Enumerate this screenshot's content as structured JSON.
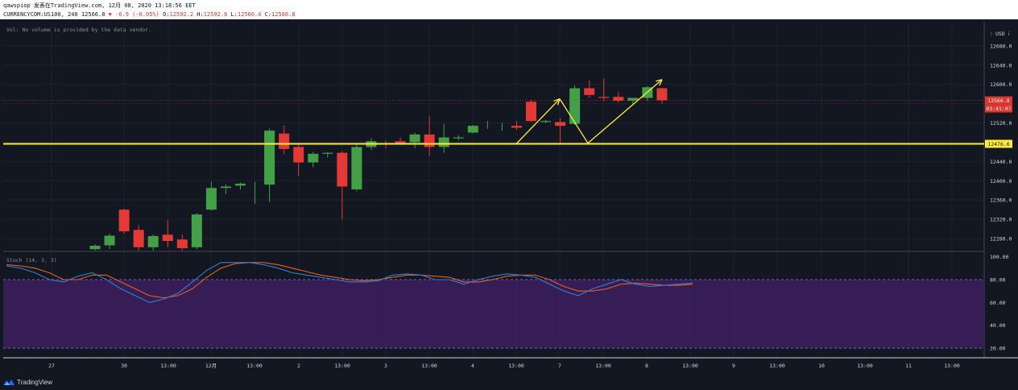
{
  "header": {
    "line1": "qawspiop 发表在TradingView.com, 12月 08, 2020 13:18:56 EET",
    "symbol": "CURRENCYCOM:US100, 240",
    "last": "12566.8",
    "change": "▼ -6.9 (-0.05%)",
    "o_label": "O:",
    "o": "12592.2",
    "h_label": "H:",
    "h": "12592.8",
    "l_label": "L:",
    "l": "12560.4",
    "c_label": "C:",
    "c": "12566.8"
  },
  "volume_note": "Vol: No volume is provided by the data vendor.",
  "currency_label": "⁝ USD ⁞",
  "price_tag": {
    "value": "12566.8",
    "countdown": "03:41:07",
    "color": "#e0342f"
  },
  "level_tag": {
    "value": "12476.6",
    "color": "#ffeb3b"
  },
  "stoch_label": "Stoch (14, 3, 3)",
  "brand": "TradingView",
  "colors": {
    "up": "#43a047",
    "down": "#e53935",
    "level": "#ffeb3b",
    "stoch_k": "#2f7fd8",
    "stoch_d": "#e8601c",
    "stoch_band": "#3b1e5c"
  },
  "chart_data": {
    "type": "candlestick",
    "price_axis": {
      "ticks": [
        12280.0,
        12320.0,
        12360.0,
        12400.0,
        12440.0,
        12480.0,
        12520.0,
        12560.0,
        12600.0,
        12640.0,
        12680.0
      ],
      "ylim": [
        12255,
        12730
      ]
    },
    "time_axis": {
      "ticks": [
        "27",
        "30",
        "13:00",
        "12月",
        "13:00",
        "2",
        "13:00",
        "3",
        "13:00",
        "4",
        "13:00",
        "7",
        "13:00",
        "8",
        "13:00",
        "9",
        "13:00",
        "10",
        "13:00",
        "11",
        "13:00"
      ]
    },
    "horizontal_level": 12476.6,
    "candles": [
      {
        "o": 12258,
        "h": 12268,
        "l": 12250,
        "c": 12265
      },
      {
        "o": 12266,
        "h": 12290,
        "l": 12258,
        "c": 12286
      },
      {
        "o": 12340,
        "h": 12342,
        "l": 12290,
        "c": 12295
      },
      {
        "o": 12298,
        "h": 12308,
        "l": 12250,
        "c": 12262
      },
      {
        "o": 12262,
        "h": 12288,
        "l": 12255,
        "c": 12285
      },
      {
        "o": 12288,
        "h": 12318,
        "l": 12262,
        "c": 12275
      },
      {
        "o": 12278,
        "h": 12288,
        "l": 12255,
        "c": 12260
      },
      {
        "o": 12262,
        "h": 12333,
        "l": 12258,
        "c": 12330
      },
      {
        "o": 12340,
        "h": 12398,
        "l": 12338,
        "c": 12385
      },
      {
        "o": 12385,
        "h": 12392,
        "l": 12372,
        "c": 12388
      },
      {
        "o": 12390,
        "h": 12396,
        "l": 12382,
        "c": 12394
      },
      {
        "o": 12392,
        "h": 12398,
        "l": 12352,
        "c": 12392
      },
      {
        "o": 12392,
        "h": 12508,
        "l": 12356,
        "c": 12504
      },
      {
        "o": 12498,
        "h": 12515,
        "l": 12455,
        "c": 12466
      },
      {
        "o": 12470,
        "h": 12476,
        "l": 12410,
        "c": 12438
      },
      {
        "o": 12438,
        "h": 12460,
        "l": 12428,
        "c": 12456
      },
      {
        "o": 12456,
        "h": 12460,
        "l": 12448,
        "c": 12458
      },
      {
        "o": 12458,
        "h": 12462,
        "l": 12320,
        "c": 12388
      },
      {
        "o": 12382,
        "h": 12478,
        "l": 12378,
        "c": 12470
      },
      {
        "o": 12470,
        "h": 12488,
        "l": 12464,
        "c": 12482
      },
      {
        "o": 12478,
        "h": 12484,
        "l": 12468,
        "c": 12476
      },
      {
        "o": 12482,
        "h": 12490,
        "l": 12474,
        "c": 12478
      },
      {
        "o": 12480,
        "h": 12500,
        "l": 12468,
        "c": 12496
      },
      {
        "o": 12496,
        "h": 12534,
        "l": 12452,
        "c": 12470
      },
      {
        "o": 12470,
        "h": 12518,
        "l": 12458,
        "c": 12490
      },
      {
        "o": 12488,
        "h": 12494,
        "l": 12484,
        "c": 12490
      },
      {
        "o": 12500,
        "h": 12516,
        "l": 12498,
        "c": 12514
      },
      {
        "o": 12512,
        "h": 12524,
        "l": 12508,
        "c": 12512
      },
      {
        "o": 12512,
        "h": 12520,
        "l": 12504,
        "c": 12512
      },
      {
        "o": 12514,
        "h": 12524,
        "l": 12506,
        "c": 12510
      },
      {
        "o": 12564,
        "h": 12568,
        "l": 12522,
        "c": 12524
      },
      {
        "o": 12522,
        "h": 12526,
        "l": 12520,
        "c": 12524
      },
      {
        "o": 12522,
        "h": 12530,
        "l": 12478,
        "c": 12514
      },
      {
        "o": 12518,
        "h": 12598,
        "l": 12516,
        "c": 12592
      },
      {
        "o": 12592,
        "h": 12608,
        "l": 12572,
        "c": 12578
      },
      {
        "o": 12574,
        "h": 12612,
        "l": 12566,
        "c": 12572
      },
      {
        "o": 12574,
        "h": 12584,
        "l": 12562,
        "c": 12566
      },
      {
        "o": 12566,
        "h": 12570,
        "l": 12558,
        "c": 12572
      },
      {
        "o": 12572,
        "h": 12596,
        "l": 12566,
        "c": 12594
      },
      {
        "o": 12592,
        "h": 12593,
        "l": 12560,
        "c": 12567
      }
    ],
    "drawings": {
      "arrow_up_1": [
        [
          12476.6,
          0
        ],
        [
          12570,
          1
        ]
      ],
      "zigzag_down": [
        [
          12570,
          1
        ],
        [
          12478,
          2
        ]
      ],
      "arrow_up_2": [
        [
          12478,
          2
        ],
        [
          12610,
          3
        ]
      ]
    },
    "stochastic": {
      "ylim": [
        20,
        100
      ],
      "ticks": [
        100.0,
        80.0,
        60.0,
        40.0,
        20.0
      ],
      "bands": [
        80,
        20
      ],
      "k": [
        92,
        90,
        86,
        80,
        78,
        83,
        86,
        80,
        72,
        66,
        60,
        63,
        68,
        78,
        88,
        95,
        95,
        95,
        93,
        90,
        86,
        84,
        82,
        80,
        78,
        78,
        79,
        84,
        85,
        84,
        80,
        80,
        76,
        80,
        83,
        85,
        84,
        82,
        76,
        70,
        66,
        72,
        76,
        80,
        76,
        74,
        75,
        76,
        77
      ],
      "d": [
        93,
        92,
        90,
        86,
        80,
        80,
        84,
        84,
        78,
        72,
        66,
        64,
        66,
        72,
        82,
        90,
        94,
        95,
        95,
        93,
        90,
        87,
        84,
        82,
        80,
        79,
        80,
        82,
        84,
        84,
        83,
        82,
        78,
        78,
        80,
        83,
        84,
        84,
        80,
        74,
        70,
        70,
        72,
        76,
        77,
        76,
        75,
        75,
        76
      ]
    }
  }
}
